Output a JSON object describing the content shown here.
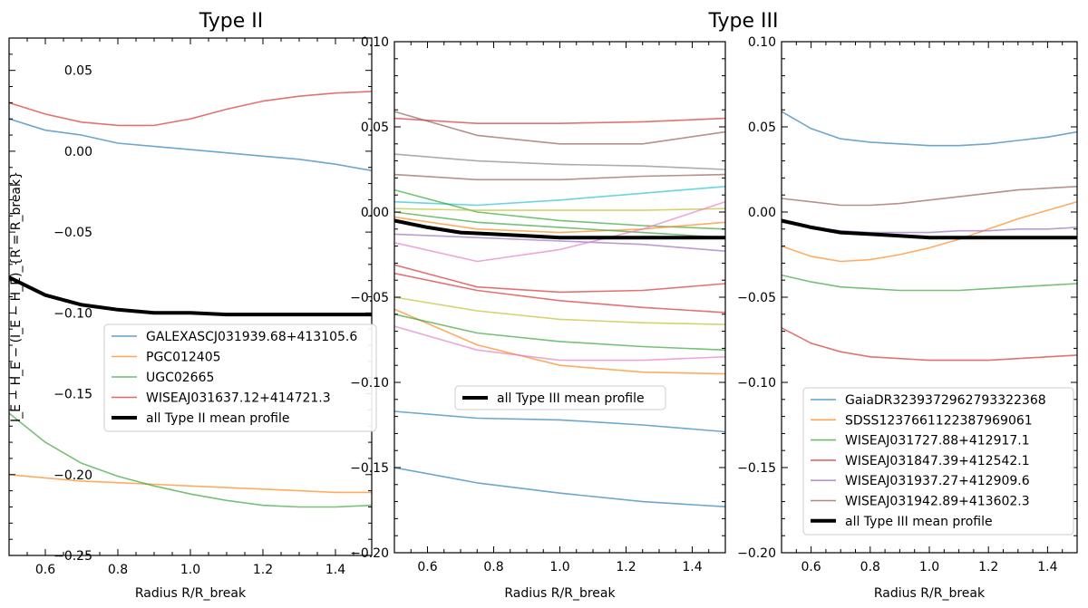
{
  "titles": {
    "left": "Type II",
    "right": "Type III"
  },
  "chart_data": [
    {
      "type": "line",
      "title": "Type II",
      "xlabel": "Radius R/R_break",
      "ylabel": "I_E − H_E − (I_E − H_E)_{R = R_break}",
      "xlim": [
        0.5,
        1.5
      ],
      "ylim": [
        -0.25,
        0.07
      ],
      "xticks": [
        0.6,
        0.8,
        1.0,
        1.2,
        1.4
      ],
      "xtick_labels": [
        "0.6",
        "0.8",
        "1.0",
        "1.2",
        "1.4"
      ],
      "yticks": [
        0.05,
        0.0,
        -0.05,
        -0.1,
        -0.15,
        -0.2,
        -0.25
      ],
      "ytick_labels": [
        "0.05",
        "0.00",
        "−0.05",
        "−0.10",
        "−0.15",
        "−0.20",
        "−0.25"
      ],
      "legend_position": "center-right",
      "series": [
        {
          "name": "GALEXASCJ031939.68+413105.6",
          "color": "#1f77b4",
          "x": [
            0.5,
            0.6,
            0.7,
            0.8,
            0.9,
            1.0,
            1.1,
            1.2,
            1.3,
            1.4,
            1.5
          ],
          "y": [
            0.02,
            0.013,
            0.01,
            0.005,
            0.003,
            0.001,
            -0.001,
            -0.003,
            -0.005,
            -0.008,
            -0.012
          ]
        },
        {
          "name": "PGC012405",
          "color": "#ff7f0e",
          "x": [
            0.5,
            0.6,
            0.7,
            0.8,
            0.9,
            1.0,
            1.1,
            1.2,
            1.3,
            1.4,
            1.5
          ],
          "y": [
            -0.2,
            -0.202,
            -0.204,
            -0.205,
            -0.206,
            -0.207,
            -0.208,
            -0.209,
            -0.21,
            -0.211,
            -0.211
          ]
        },
        {
          "name": "UGC02665",
          "color": "#2ca02c",
          "x": [
            0.5,
            0.6,
            0.7,
            0.8,
            0.9,
            1.0,
            1.1,
            1.2,
            1.3,
            1.4,
            1.5
          ],
          "y": [
            -0.162,
            -0.18,
            -0.193,
            -0.201,
            -0.207,
            -0.212,
            -0.216,
            -0.219,
            -0.22,
            -0.22,
            -0.219
          ]
        },
        {
          "name": "WISEAJ031637.12+414721.3",
          "color": "#d62728",
          "x": [
            0.5,
            0.6,
            0.7,
            0.8,
            0.9,
            1.0,
            1.1,
            1.2,
            1.3,
            1.4,
            1.5
          ],
          "y": [
            0.03,
            0.023,
            0.018,
            0.016,
            0.016,
            0.02,
            0.026,
            0.031,
            0.034,
            0.036,
            0.037
          ]
        },
        {
          "name": "all Type II mean profile",
          "color": "#000000",
          "thick": true,
          "x": [
            0.5,
            0.6,
            0.7,
            0.8,
            0.9,
            1.0,
            1.1,
            1.2,
            1.3,
            1.4,
            1.5
          ],
          "y": [
            -0.078,
            -0.089,
            -0.095,
            -0.098,
            -0.1,
            -0.1,
            -0.101,
            -0.101,
            -0.101,
            -0.101,
            -0.101
          ]
        }
      ]
    },
    {
      "type": "line",
      "title": "",
      "xlabel": "Radius R/R_break",
      "ylabel": "",
      "xlim": [
        0.5,
        1.5
      ],
      "ylim": [
        -0.2,
        0.1
      ],
      "xticks": [
        0.6,
        0.8,
        1.0,
        1.2,
        1.4
      ],
      "xtick_labels": [
        "0.6",
        "0.8",
        "1.0",
        "1.2",
        "1.4"
      ],
      "yticks": [
        0.1,
        0.05,
        0.0,
        -0.05,
        -0.1,
        -0.15,
        -0.2
      ],
      "ytick_labels": [
        "0.10",
        "0.05",
        "0.00",
        "−0.05",
        "−0.10",
        "−0.15",
        "−0.20"
      ],
      "legend_position": "center-left",
      "series": [
        {
          "name": "",
          "color": "#d62728",
          "x": [
            0.5,
            0.75,
            1.0,
            1.25,
            1.5
          ],
          "y": [
            0.055,
            0.052,
            0.052,
            0.053,
            0.055
          ]
        },
        {
          "name": "",
          "color": "#8c564b",
          "x": [
            0.5,
            0.75,
            1.0,
            1.25,
            1.5
          ],
          "y": [
            0.059,
            0.045,
            0.04,
            0.04,
            0.047
          ]
        },
        {
          "name": "",
          "color": "#7f7f7f",
          "x": [
            0.5,
            0.75,
            1.0,
            1.25,
            1.5
          ],
          "y": [
            0.034,
            0.03,
            0.028,
            0.027,
            0.025
          ]
        },
        {
          "name": "",
          "color": "#8c564b",
          "x": [
            0.5,
            0.75,
            1.0,
            1.25,
            1.5
          ],
          "y": [
            0.022,
            0.019,
            0.019,
            0.021,
            0.022
          ]
        },
        {
          "name": "",
          "color": "#17becf",
          "x": [
            0.5,
            0.75,
            1.0,
            1.25,
            1.5
          ],
          "y": [
            0.006,
            0.004,
            0.007,
            0.011,
            0.015
          ]
        },
        {
          "name": "",
          "color": "#2ca02c",
          "x": [
            0.5,
            0.75,
            1.0,
            1.25,
            1.5
          ],
          "y": [
            0.013,
            0.0,
            -0.005,
            -0.008,
            -0.01
          ]
        },
        {
          "name": "",
          "color": "#bcbd22",
          "x": [
            0.5,
            0.75,
            1.0,
            1.25,
            1.5
          ],
          "y": [
            0.002,
            0.001,
            0.001,
            0.001,
            0.002
          ]
        },
        {
          "name": "",
          "color": "#ff7f0e",
          "x": [
            0.5,
            0.75,
            1.0,
            1.25,
            1.5
          ],
          "y": [
            -0.003,
            -0.01,
            -0.012,
            -0.01,
            -0.006
          ]
        },
        {
          "name": "",
          "color": "#2ca02c",
          "x": [
            0.5,
            0.75,
            1.0,
            1.25,
            1.5
          ],
          "y": [
            0.0,
            -0.006,
            -0.009,
            -0.012,
            -0.015
          ]
        },
        {
          "name": "",
          "color": "#9467bd",
          "x": [
            0.5,
            0.75,
            1.0,
            1.25,
            1.5
          ],
          "y": [
            -0.013,
            -0.015,
            -0.017,
            -0.019,
            -0.023
          ]
        },
        {
          "name": "",
          "color": "#e377c2",
          "x": [
            0.5,
            0.75,
            1.0,
            1.25,
            1.5
          ],
          "y": [
            -0.018,
            -0.029,
            -0.022,
            -0.01,
            0.006
          ]
        },
        {
          "name": "",
          "color": "#d62728",
          "x": [
            0.5,
            0.75,
            1.0,
            1.25,
            1.5
          ],
          "y": [
            -0.031,
            -0.044,
            -0.047,
            -0.046,
            -0.042
          ]
        },
        {
          "name": "",
          "color": "#d62728",
          "x": [
            0.5,
            0.75,
            1.0,
            1.25,
            1.5
          ],
          "y": [
            -0.036,
            -0.046,
            -0.052,
            -0.056,
            -0.059
          ]
        },
        {
          "name": "",
          "color": "#bcbd22",
          "x": [
            0.5,
            0.75,
            1.0,
            1.25,
            1.5
          ],
          "y": [
            -0.05,
            -0.058,
            -0.063,
            -0.065,
            -0.066
          ]
        },
        {
          "name": "",
          "color": "#ff7f0e",
          "x": [
            0.5,
            0.75,
            1.0,
            1.25,
            1.5
          ],
          "y": [
            -0.057,
            -0.078,
            -0.09,
            -0.094,
            -0.095
          ]
        },
        {
          "name": "",
          "color": "#2ca02c",
          "x": [
            0.5,
            0.75,
            1.0,
            1.25,
            1.5
          ],
          "y": [
            -0.06,
            -0.071,
            -0.076,
            -0.079,
            -0.081
          ]
        },
        {
          "name": "",
          "color": "#e377c2",
          "x": [
            0.5,
            0.75,
            1.0,
            1.25,
            1.5
          ],
          "y": [
            -0.067,
            -0.081,
            -0.087,
            -0.087,
            -0.085
          ]
        },
        {
          "name": "",
          "color": "#1f77b4",
          "x": [
            0.5,
            0.75,
            1.0,
            1.25,
            1.5
          ],
          "y": [
            -0.117,
            -0.121,
            -0.122,
            -0.125,
            -0.129
          ]
        },
        {
          "name": "",
          "color": "#1f77b4",
          "x": [
            0.5,
            0.75,
            1.0,
            1.25,
            1.5
          ],
          "y": [
            -0.15,
            -0.159,
            -0.165,
            -0.17,
            -0.173
          ]
        },
        {
          "name": "all Type III mean profile",
          "color": "#000000",
          "thick": true,
          "x": [
            0.5,
            0.6,
            0.7,
            0.8,
            0.9,
            1.0,
            1.1,
            1.2,
            1.3,
            1.4,
            1.5
          ],
          "y": [
            -0.005,
            -0.009,
            -0.012,
            -0.013,
            -0.014,
            -0.015,
            -0.015,
            -0.015,
            -0.015,
            -0.015,
            -0.015
          ]
        }
      ]
    },
    {
      "type": "line",
      "title": "",
      "xlabel": "Radius R/R_break",
      "ylabel": "",
      "xlim": [
        0.5,
        1.5
      ],
      "ylim": [
        -0.2,
        0.1
      ],
      "xticks": [
        0.6,
        0.8,
        1.0,
        1.2,
        1.4
      ],
      "xtick_labels": [
        "0.6",
        "0.8",
        "1.0",
        "1.2",
        "1.4"
      ],
      "yticks": [
        0.1,
        0.05,
        0.0,
        -0.05,
        -0.1,
        -0.15,
        -0.2
      ],
      "ytick_labels": [
        "0.10",
        "0.05",
        "0.00",
        "−0.05",
        "−0.10",
        "−0.15",
        "−0.20"
      ],
      "legend_position": "lower-right",
      "series": [
        {
          "name": "GaiaDR3239372962793322368",
          "color": "#1f77b4",
          "x": [
            0.5,
            0.6,
            0.7,
            0.8,
            0.9,
            1.0,
            1.1,
            1.2,
            1.3,
            1.4,
            1.5
          ],
          "y": [
            0.059,
            0.049,
            0.043,
            0.041,
            0.04,
            0.039,
            0.039,
            0.04,
            0.042,
            0.044,
            0.047
          ]
        },
        {
          "name": "SDSS1237661122387969061",
          "color": "#ff7f0e",
          "x": [
            0.5,
            0.6,
            0.7,
            0.8,
            0.9,
            1.0,
            1.1,
            1.2,
            1.3,
            1.4,
            1.5
          ],
          "y": [
            -0.02,
            -0.026,
            -0.029,
            -0.028,
            -0.025,
            -0.021,
            -0.016,
            -0.01,
            -0.004,
            0.001,
            0.006
          ]
        },
        {
          "name": "WISEAJ031727.88+412917.1",
          "color": "#2ca02c",
          "x": [
            0.5,
            0.6,
            0.7,
            0.8,
            0.9,
            1.0,
            1.1,
            1.2,
            1.3,
            1.4,
            1.5
          ],
          "y": [
            -0.037,
            -0.041,
            -0.044,
            -0.045,
            -0.046,
            -0.046,
            -0.046,
            -0.045,
            -0.044,
            -0.043,
            -0.042
          ]
        },
        {
          "name": "WISEAJ031847.39+412542.1",
          "color": "#d62728",
          "x": [
            0.5,
            0.6,
            0.7,
            0.8,
            0.9,
            1.0,
            1.1,
            1.2,
            1.3,
            1.4,
            1.5
          ],
          "y": [
            -0.068,
            -0.077,
            -0.082,
            -0.085,
            -0.086,
            -0.087,
            -0.087,
            -0.087,
            -0.086,
            -0.085,
            -0.084
          ]
        },
        {
          "name": "WISEAJ031937.27+412909.6",
          "color": "#9467bd",
          "x": [
            0.5,
            0.6,
            0.7,
            0.8,
            0.9,
            1.0,
            1.1,
            1.2,
            1.3,
            1.4,
            1.5
          ],
          "y": [
            -0.006,
            -0.009,
            -0.011,
            -0.012,
            -0.012,
            -0.012,
            -0.011,
            -0.011,
            -0.01,
            -0.01,
            -0.009
          ]
        },
        {
          "name": "WISEAJ031942.89+413602.3",
          "color": "#8c564b",
          "x": [
            0.5,
            0.6,
            0.7,
            0.8,
            0.9,
            1.0,
            1.1,
            1.2,
            1.3,
            1.4,
            1.5
          ],
          "y": [
            0.008,
            0.006,
            0.004,
            0.004,
            0.005,
            0.007,
            0.009,
            0.011,
            0.013,
            0.014,
            0.015
          ]
        },
        {
          "name": "all Type III mean profile",
          "color": "#000000",
          "thick": true,
          "x": [
            0.5,
            0.6,
            0.7,
            0.8,
            0.9,
            1.0,
            1.1,
            1.2,
            1.3,
            1.4,
            1.5
          ],
          "y": [
            -0.005,
            -0.009,
            -0.012,
            -0.013,
            -0.014,
            -0.015,
            -0.015,
            -0.015,
            -0.015,
            -0.015,
            -0.015
          ]
        }
      ]
    }
  ]
}
